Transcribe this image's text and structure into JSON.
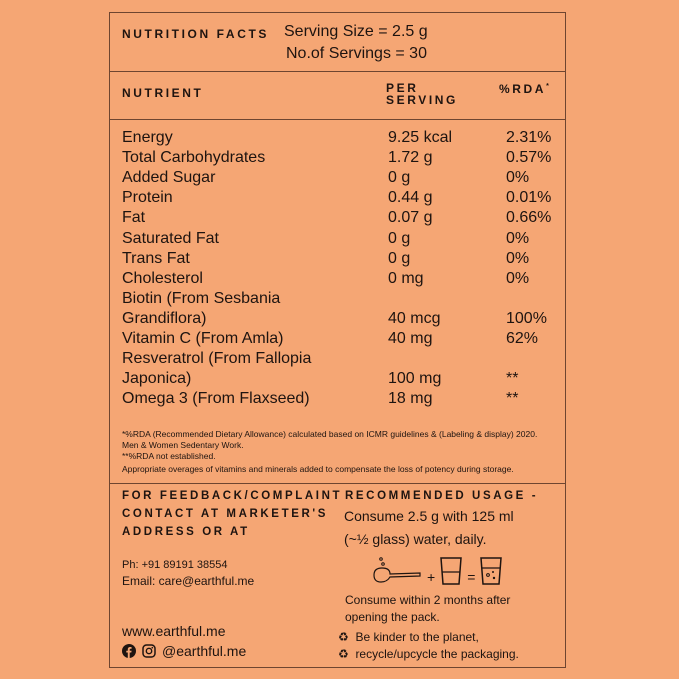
{
  "header": {
    "title": "NUTRITION FACTS",
    "serving_size": "Serving Size = 2.5 g",
    "servings": "No.of Servings = 30"
  },
  "columns": {
    "nutrient": "NUTRIENT",
    "per": "PER",
    "serving": "SERVING",
    "rda": "%RDA",
    "rda_mark": "*"
  },
  "rows": [
    [
      "Energy",
      "9.25 kcal",
      "2.31%"
    ],
    [
      "Total Carbohydrates",
      "1.72 g",
      "0.57%"
    ],
    [
      "Added Sugar",
      "0 g",
      "0%"
    ],
    [
      "Protein",
      "0.44 g",
      "0.01%"
    ],
    [
      "Fat",
      "0.07 g",
      "0.66%"
    ],
    [
      "Saturated Fat",
      "0 g",
      "0%"
    ],
    [
      "Trans Fat",
      "0 g",
      "0%"
    ],
    [
      "Cholesterol",
      "0 mg",
      "0%"
    ],
    [
      "Biotin (From Sesbania",
      "",
      ""
    ],
    [
      "Grandiflora)",
      "40 mcg",
      "100%"
    ],
    [
      "Vitamin C (From Amla)",
      "40 mg",
      "62%"
    ],
    [
      "Resveratrol (From Fallopia",
      "",
      ""
    ],
    [
      "Japonica)",
      "100 mg",
      "**"
    ],
    [
      "Omega 3 (From Flaxseed)",
      "18 mg",
      "**"
    ]
  ],
  "notes": {
    "rda1": "*%RDA (Recommended Dietary Allowance) calculated based on ICMR guidelines & (Labeling & display) 2020.",
    "rda2": "Men & Women Sedentary Work.",
    "rda3": "**%RDA not established.",
    "overages": "Appropriate overages of vitamins and minerals added to compensate the loss of potency during storage."
  },
  "feedback": {
    "line1": "FOR FEEDBACK/COMPLAINT",
    "line2": "CONTACT AT MARKETER'S",
    "line3": "ADDRESS OR AT",
    "phone": "Ph: +91 89191 38554",
    "email": "Email: care@earthful.me",
    "website": "www.earthful.me",
    "social": "@earthful.me"
  },
  "usage": {
    "title": "RECOMMENDED USAGE -",
    "line1": "Consume 2.5 g with 125 ml",
    "line2": "(~½ glass) water, daily.",
    "plus": "+",
    "equals": "=",
    "consume1": "Consume within 2 months after",
    "consume2": "opening the pack.",
    "eco1": "Be kinder to the planet,",
    "eco2": "recycle/upcycle the packaging."
  },
  "colors": {
    "background": "#f5a674",
    "text": "#1e1410",
    "border": "#6e4530"
  }
}
